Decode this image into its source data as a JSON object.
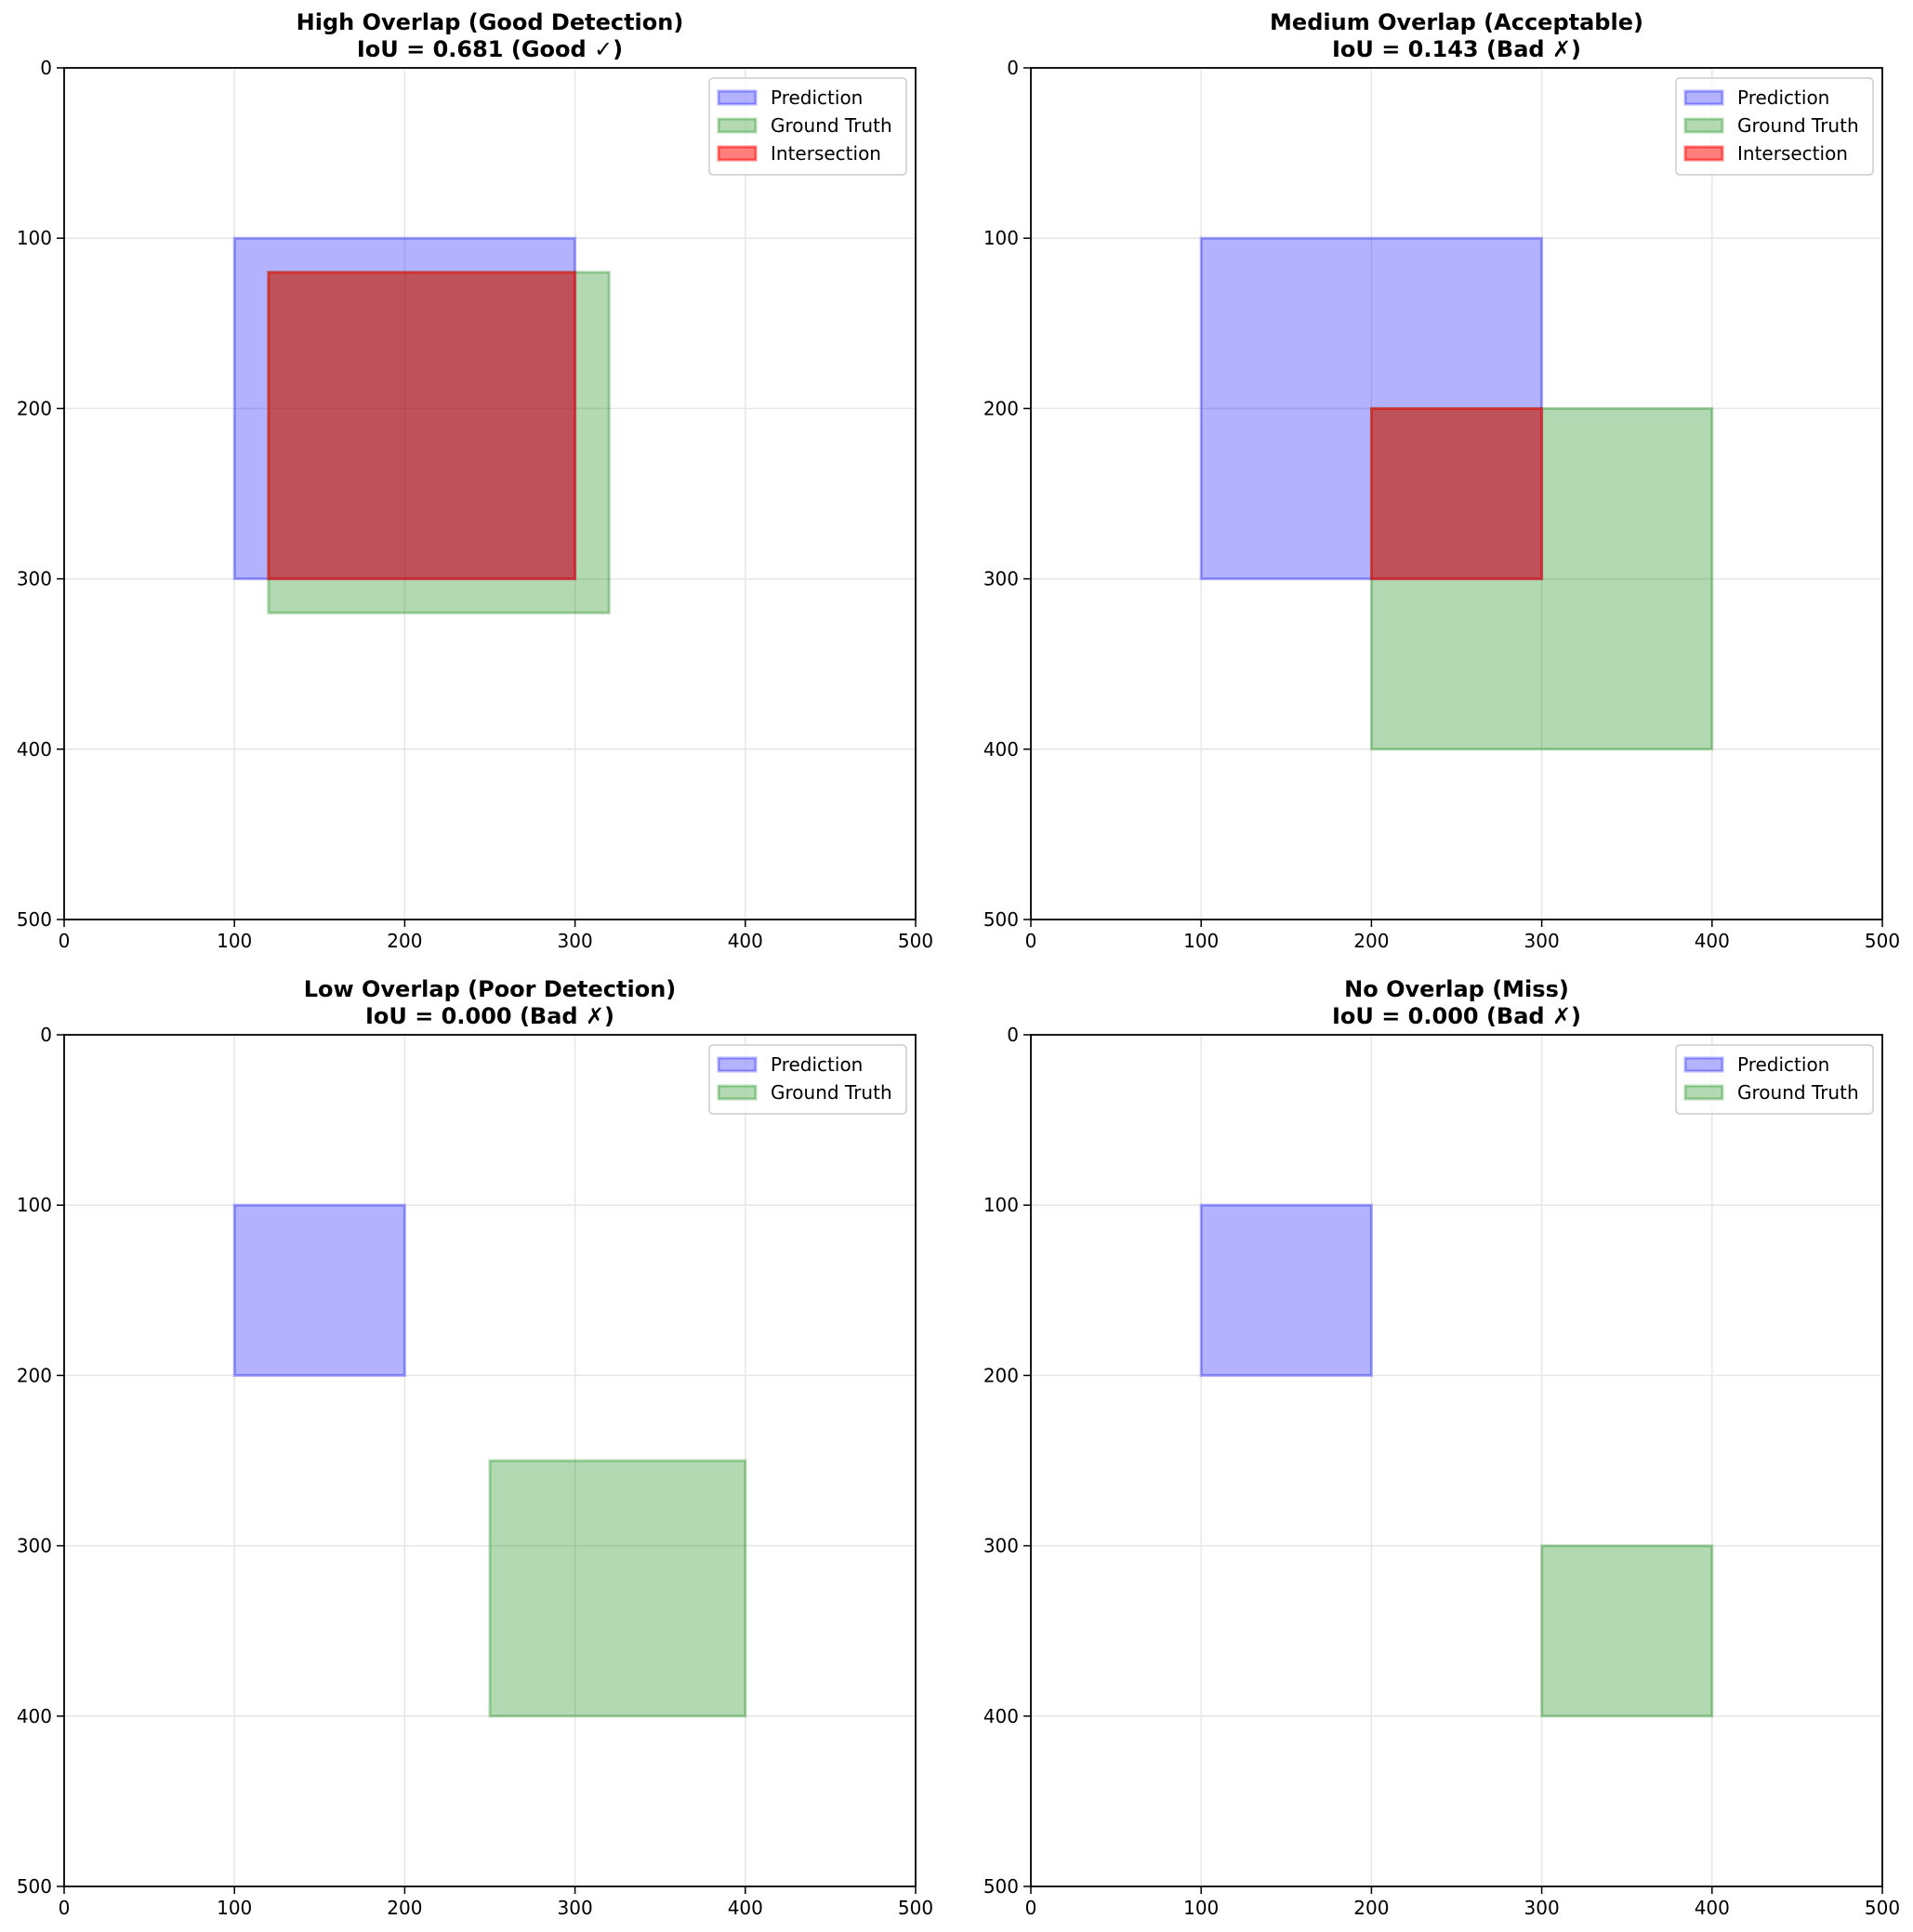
{
  "chart_data": [
    {
      "type": "box-overlap",
      "title": "High Overlap (Good Detection)",
      "subtitle": "IoU = 0.681 (Good ✓)",
      "xlim": [
        0,
        500
      ],
      "ylim": [
        500,
        0
      ],
      "xticks": [
        "0",
        "100",
        "200",
        "300",
        "400",
        "500"
      ],
      "yticks": [
        "0",
        "100",
        "200",
        "300",
        "400",
        "500"
      ],
      "grid": true,
      "legend_position": "upper right",
      "legend": [
        "Prediction",
        "Ground Truth",
        "Intersection"
      ],
      "boxes": [
        {
          "name": "Prediction",
          "x1": 100,
          "y1": 100,
          "x2": 300,
          "y2": 300
        },
        {
          "name": "Ground Truth",
          "x1": 120,
          "y1": 120,
          "x2": 320,
          "y2": 320
        },
        {
          "name": "Intersection",
          "x1": 120,
          "y1": 120,
          "x2": 300,
          "y2": 300
        }
      ]
    },
    {
      "type": "box-overlap",
      "title": "Medium Overlap (Acceptable)",
      "subtitle": "IoU = 0.143 (Bad ✗)",
      "xlim": [
        0,
        500
      ],
      "ylim": [
        500,
        0
      ],
      "xticks": [
        "0",
        "100",
        "200",
        "300",
        "400",
        "500"
      ],
      "yticks": [
        "0",
        "100",
        "200",
        "300",
        "400",
        "500"
      ],
      "grid": true,
      "legend_position": "upper right",
      "legend": [
        "Prediction",
        "Ground Truth",
        "Intersection"
      ],
      "boxes": [
        {
          "name": "Prediction",
          "x1": 100,
          "y1": 100,
          "x2": 300,
          "y2": 300
        },
        {
          "name": "Ground Truth",
          "x1": 200,
          "y1": 200,
          "x2": 400,
          "y2": 400
        },
        {
          "name": "Intersection",
          "x1": 200,
          "y1": 200,
          "x2": 300,
          "y2": 300
        }
      ]
    },
    {
      "type": "box-overlap",
      "title": "Low Overlap (Poor Detection)",
      "subtitle": "IoU = 0.000 (Bad ✗)",
      "xlim": [
        0,
        500
      ],
      "ylim": [
        500,
        0
      ],
      "xticks": [
        "0",
        "100",
        "200",
        "300",
        "400",
        "500"
      ],
      "yticks": [
        "0",
        "100",
        "200",
        "300",
        "400",
        "500"
      ],
      "grid": true,
      "legend_position": "upper right",
      "legend": [
        "Prediction",
        "Ground Truth"
      ],
      "boxes": [
        {
          "name": "Prediction",
          "x1": 100,
          "y1": 100,
          "x2": 200,
          "y2": 200
        },
        {
          "name": "Ground Truth",
          "x1": 250,
          "y1": 250,
          "x2": 400,
          "y2": 400
        }
      ]
    },
    {
      "type": "box-overlap",
      "title": "No Overlap (Miss)",
      "subtitle": "IoU = 0.000 (Bad ✗)",
      "xlim": [
        0,
        500
      ],
      "ylim": [
        500,
        0
      ],
      "xticks": [
        "0",
        "100",
        "200",
        "300",
        "400",
        "500"
      ],
      "yticks": [
        "0",
        "100",
        "200",
        "300",
        "400",
        "500"
      ],
      "grid": true,
      "legend_position": "upper right",
      "legend": [
        "Prediction",
        "Ground Truth"
      ],
      "boxes": [
        {
          "name": "Prediction",
          "x1": 100,
          "y1": 100,
          "x2": 200,
          "y2": 200
        },
        {
          "name": "Ground Truth",
          "x1": 300,
          "y1": 300,
          "x2": 400,
          "y2": 400
        }
      ]
    }
  ],
  "colors": {
    "Prediction": {
      "fill": "#0000ff",
      "fill_opacity": 0.3,
      "stroke": "#0000ff",
      "stroke_opacity": 0.3
    },
    "Ground Truth": {
      "fill": "#008000",
      "fill_opacity": 0.3,
      "stroke": "#008000",
      "stroke_opacity": 0.3
    },
    "Intersection": {
      "fill": "#ff0000",
      "fill_opacity": 0.5,
      "stroke": "#ff0000",
      "stroke_opacity": 0.5
    },
    "grid": "#e6e6e6",
    "axis": "#000000"
  }
}
